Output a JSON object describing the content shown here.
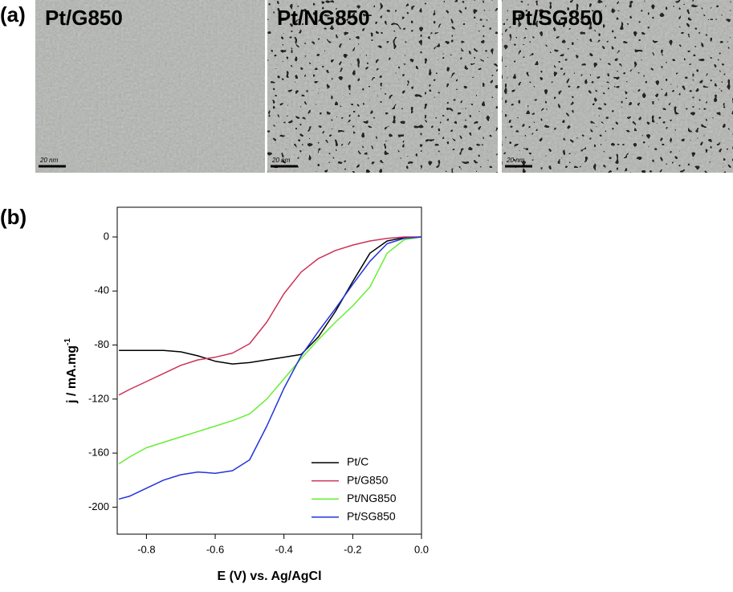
{
  "panel_a": {
    "label": "(a)",
    "images": [
      {
        "label": "Pt/G850",
        "scale": "20 nm"
      },
      {
        "label": "Pt/NG850",
        "scale": "20 nm"
      },
      {
        "label": "Pt/SG850",
        "scale": "20 nm"
      }
    ]
  },
  "chart_data": {
    "type": "line",
    "panel_label": "(b)",
    "x_label": "E (V) vs. Ag/AgCl",
    "y_label": "j / mA.mg",
    "y_label_sup": "-1",
    "x": [
      -0.88,
      -0.85,
      -0.8,
      -0.75,
      -0.7,
      -0.65,
      -0.6,
      -0.55,
      -0.5,
      -0.45,
      -0.4,
      -0.35,
      -0.3,
      -0.25,
      -0.2,
      -0.15,
      -0.1,
      -0.05,
      0
    ],
    "series": [
      {
        "name": "Pt/C",
        "color": "#000000",
        "values": [
          -84,
          -84,
          -84,
          -84,
          -85,
          -88,
          -92,
          -94,
          -93,
          -91,
          -89,
          -87,
          -74,
          -55,
          -33,
          -12,
          -3,
          -0.5,
          0
        ]
      },
      {
        "name": "Pt/G850",
        "color": "#cc3355",
        "values": [
          -117,
          -113,
          -107,
          -101,
          -95,
          -91,
          -89,
          -86,
          -79,
          -63,
          -42,
          -26,
          -16,
          -10,
          -6,
          -3,
          -1,
          0,
          0
        ]
      },
      {
        "name": "Pt/NG850",
        "color": "#66ee33",
        "values": [
          -168,
          -163,
          -156,
          -152,
          -148,
          -144,
          -140,
          -136,
          -131,
          -120,
          -105,
          -90,
          -76,
          -63,
          -51,
          -37,
          -12,
          -2,
          0
        ]
      },
      {
        "name": "Pt/SG850",
        "color": "#2233dd",
        "values": [
          -194,
          -192,
          -186,
          -180,
          -176,
          -174,
          -175,
          -173,
          -165,
          -140,
          -112,
          -88,
          -70,
          -53,
          -35,
          -18,
          -5,
          -1,
          0
        ]
      }
    ],
    "xlim": [
      -0.885,
      0
    ],
    "ylim": [
      -220,
      22
    ],
    "xticks": [
      -0.8,
      -0.6,
      -0.4,
      -0.2,
      {
        "value": 0,
        "label": "0.0"
      }
    ],
    "yticks": [
      0,
      -40,
      -80,
      -120,
      -160,
      -200
    ],
    "legend": "lower right"
  }
}
